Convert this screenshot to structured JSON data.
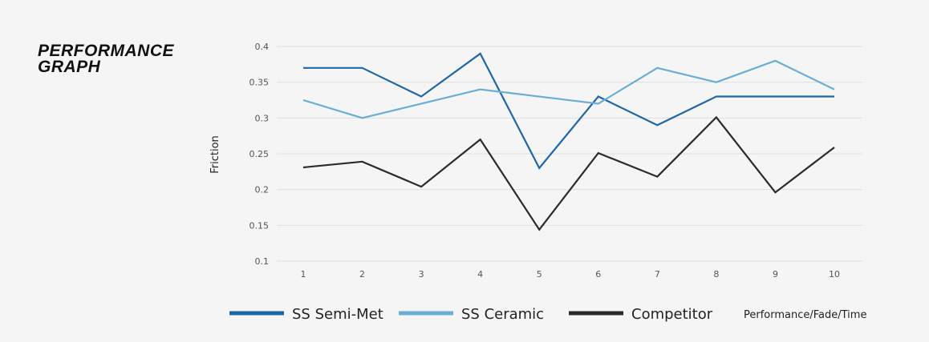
{
  "title": "PERFORMANCE GRAPH",
  "chart_data": {
    "type": "line",
    "title": "PERFORMANCE GRAPH",
    "xlabel": "Performance/Fade/Time",
    "ylabel": "Friction",
    "x": [
      1,
      2,
      3,
      4,
      5,
      6,
      7,
      8,
      9,
      10
    ],
    "ylim": [
      0.1,
      0.4
    ],
    "yticks": [
      "0.1",
      "0.15",
      "0.2",
      "0.25",
      "0.3",
      "0.35",
      "0.4"
    ],
    "grid": true,
    "legend": "bottom",
    "series": [
      {
        "name": "SS Semi-Met",
        "color": "#1f67a6",
        "values": [
          0.37,
          0.37,
          0.33,
          0.39,
          0.23,
          0.33,
          0.29,
          0.33,
          0.33,
          0.33
        ]
      },
      {
        "name": "SS Ceramic",
        "color": "#6aaed8",
        "values": [
          0.325,
          0.3,
          0.32,
          0.34,
          0.33,
          0.32,
          0.37,
          0.35,
          0.38,
          0.34
        ]
      },
      {
        "name": "Competitor",
        "color": "#2b2b2b",
        "values": [
          0.231,
          0.239,
          0.204,
          0.27,
          0.144,
          0.251,
          0.218,
          0.301,
          0.196,
          0.259
        ]
      }
    ]
  }
}
